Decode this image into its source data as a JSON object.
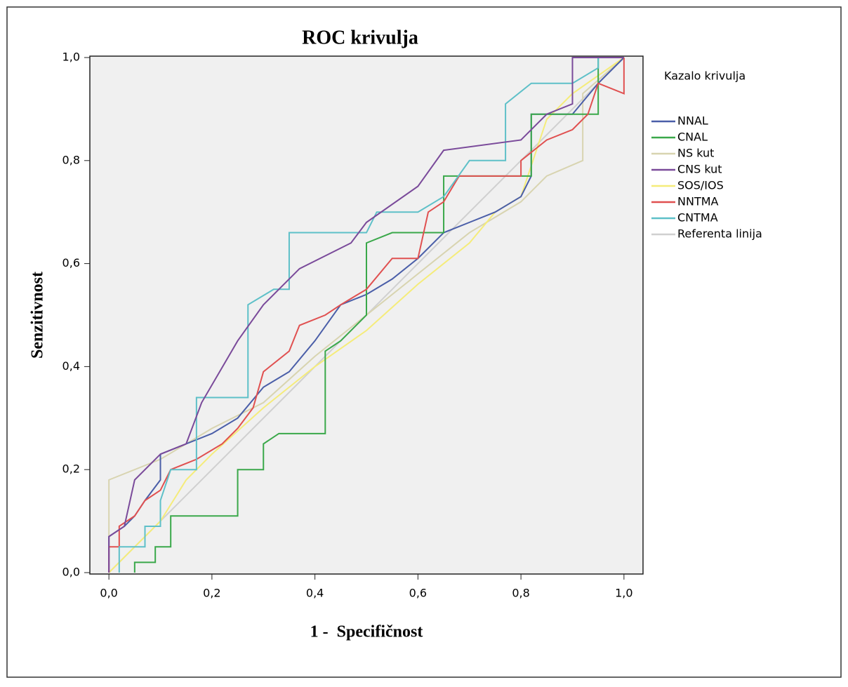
{
  "chart_data": {
    "type": "line",
    "title": "ROC krivulja",
    "x_label": "1 -  Specifičnost",
    "y_label": "Senzitivnost",
    "legend_title": "Kazalo krivulja",
    "legend": "right",
    "xlim": [
      -0.037,
      1.037
    ],
    "ylim": [
      0,
      1
    ],
    "xticks": [
      {
        "value": 0,
        "label": "0,0"
      },
      {
        "value": 0.2,
        "label": "0,2"
      },
      {
        "value": 0.4,
        "label": "0,4"
      },
      {
        "value": 0.6,
        "label": "0,6"
      },
      {
        "value": 0.8,
        "label": "0,8"
      },
      {
        "value": 1,
        "label": "1,0"
      }
    ],
    "yticks": [
      {
        "value": 0,
        "label": "0,0"
      },
      {
        "value": 0.2,
        "label": "0,2"
      },
      {
        "value": 0.4,
        "label": "0,4"
      },
      {
        "value": 0.6,
        "label": "0,6"
      },
      {
        "value": 0.8,
        "label": "0,8"
      },
      {
        "value": 1,
        "label": "1,0"
      }
    ],
    "series": [
      {
        "name": "NNAL",
        "color": "#4a5ea8",
        "x": [
          0,
          0,
          0.03,
          0.05,
          0.07,
          0.1,
          0.1,
          0.15,
          0.2,
          0.25,
          0.3,
          0.35,
          0.4,
          0.45,
          0.5,
          0.55,
          0.6,
          0.65,
          0.7,
          0.75,
          0.8,
          0.82,
          0.82,
          0.85,
          0.9,
          0.95,
          1
        ],
        "values": [
          0,
          0.07,
          0.09,
          0.11,
          0.14,
          0.18,
          0.23,
          0.25,
          0.27,
          0.3,
          0.36,
          0.39,
          0.45,
          0.52,
          0.54,
          0.57,
          0.61,
          0.66,
          0.68,
          0.7,
          0.73,
          0.77,
          0.89,
          0.89,
          0.89,
          0.95,
          1
        ]
      },
      {
        "name": "CNAL",
        "color": "#3aa84a",
        "x": [
          0.05,
          0.05,
          0.09,
          0.09,
          0.12,
          0.12,
          0.25,
          0.25,
          0.3,
          0.3,
          0.33,
          0.42,
          0.42,
          0.45,
          0.5,
          0.5,
          0.55,
          0.65,
          0.65,
          0.82,
          0.82,
          0.95,
          0.95,
          1
        ],
        "values": [
          0,
          0.02,
          0.02,
          0.05,
          0.05,
          0.11,
          0.11,
          0.2,
          0.2,
          0.25,
          0.27,
          0.27,
          0.43,
          0.45,
          0.5,
          0.64,
          0.66,
          0.66,
          0.77,
          0.77,
          0.89,
          0.89,
          1,
          1
        ]
      },
      {
        "name": "NS kut",
        "color": "#d8d4b0",
        "x": [
          0,
          0,
          0.1,
          0.2,
          0.3,
          0.4,
          0.5,
          0.6,
          0.7,
          0.8,
          0.85,
          0.92,
          0.92,
          1
        ],
        "values": [
          0,
          0.18,
          0.22,
          0.28,
          0.33,
          0.42,
          0.5,
          0.58,
          0.66,
          0.72,
          0.77,
          0.8,
          0.93,
          1
        ]
      },
      {
        "name": "CNS kut",
        "color": "#7a4a9a",
        "x": [
          0,
          0,
          0.03,
          0.05,
          0.1,
          0.15,
          0.18,
          0.25,
          0.3,
          0.37,
          0.47,
          0.5,
          0.6,
          0.65,
          0.8,
          0.85,
          0.9,
          0.9,
          1
        ],
        "values": [
          0,
          0.07,
          0.09,
          0.18,
          0.23,
          0.25,
          0.33,
          0.45,
          0.52,
          0.59,
          0.64,
          0.68,
          0.75,
          0.82,
          0.84,
          0.89,
          0.91,
          1,
          1
        ]
      },
      {
        "name": "SOS/IOS",
        "color": "#f5ec7a",
        "x": [
          0,
          0.05,
          0.1,
          0.15,
          0.2,
          0.3,
          0.4,
          0.5,
          0.6,
          0.7,
          0.75,
          0.8,
          0.85,
          0.9,
          1
        ],
        "values": [
          0,
          0.05,
          0.1,
          0.18,
          0.23,
          0.32,
          0.4,
          0.47,
          0.56,
          0.64,
          0.7,
          0.73,
          0.88,
          0.93,
          1
        ]
      },
      {
        "name": "NNTMA",
        "color": "#e05050",
        "x": [
          0,
          0,
          0.02,
          0.02,
          0.05,
          0.07,
          0.1,
          0.12,
          0.17,
          0.22,
          0.25,
          0.28,
          0.3,
          0.35,
          0.37,
          0.42,
          0.45,
          0.5,
          0.55,
          0.6,
          0.62,
          0.65,
          0.68,
          0.8,
          0.8,
          0.85,
          0.9,
          0.93,
          0.95,
          1,
          1
        ],
        "values": [
          0,
          0.05,
          0.05,
          0.09,
          0.11,
          0.14,
          0.16,
          0.2,
          0.22,
          0.25,
          0.28,
          0.32,
          0.39,
          0.43,
          0.48,
          0.5,
          0.52,
          0.55,
          0.61,
          0.61,
          0.7,
          0.72,
          0.77,
          0.77,
          0.8,
          0.84,
          0.86,
          0.89,
          0.95,
          0.93,
          1
        ]
      },
      {
        "name": "CNTMA",
        "color": "#5ec0c8",
        "x": [
          0.02,
          0.02,
          0.07,
          0.07,
          0.1,
          0.1,
          0.12,
          0.17,
          0.17,
          0.27,
          0.27,
          0.32,
          0.35,
          0.35,
          0.5,
          0.52,
          0.6,
          0.65,
          0.7,
          0.77,
          0.77,
          0.82,
          0.9,
          0.95,
          0.95,
          1
        ],
        "values": [
          0,
          0.05,
          0.05,
          0.09,
          0.09,
          0.14,
          0.2,
          0.2,
          0.34,
          0.34,
          0.52,
          0.55,
          0.55,
          0.66,
          0.66,
          0.7,
          0.7,
          0.73,
          0.8,
          0.8,
          0.91,
          0.95,
          0.95,
          0.98,
          1,
          1
        ]
      },
      {
        "name": "Referenta linija",
        "color": "#d0d0d0",
        "x": [
          0,
          1
        ],
        "values": [
          0,
          1
        ]
      }
    ]
  }
}
